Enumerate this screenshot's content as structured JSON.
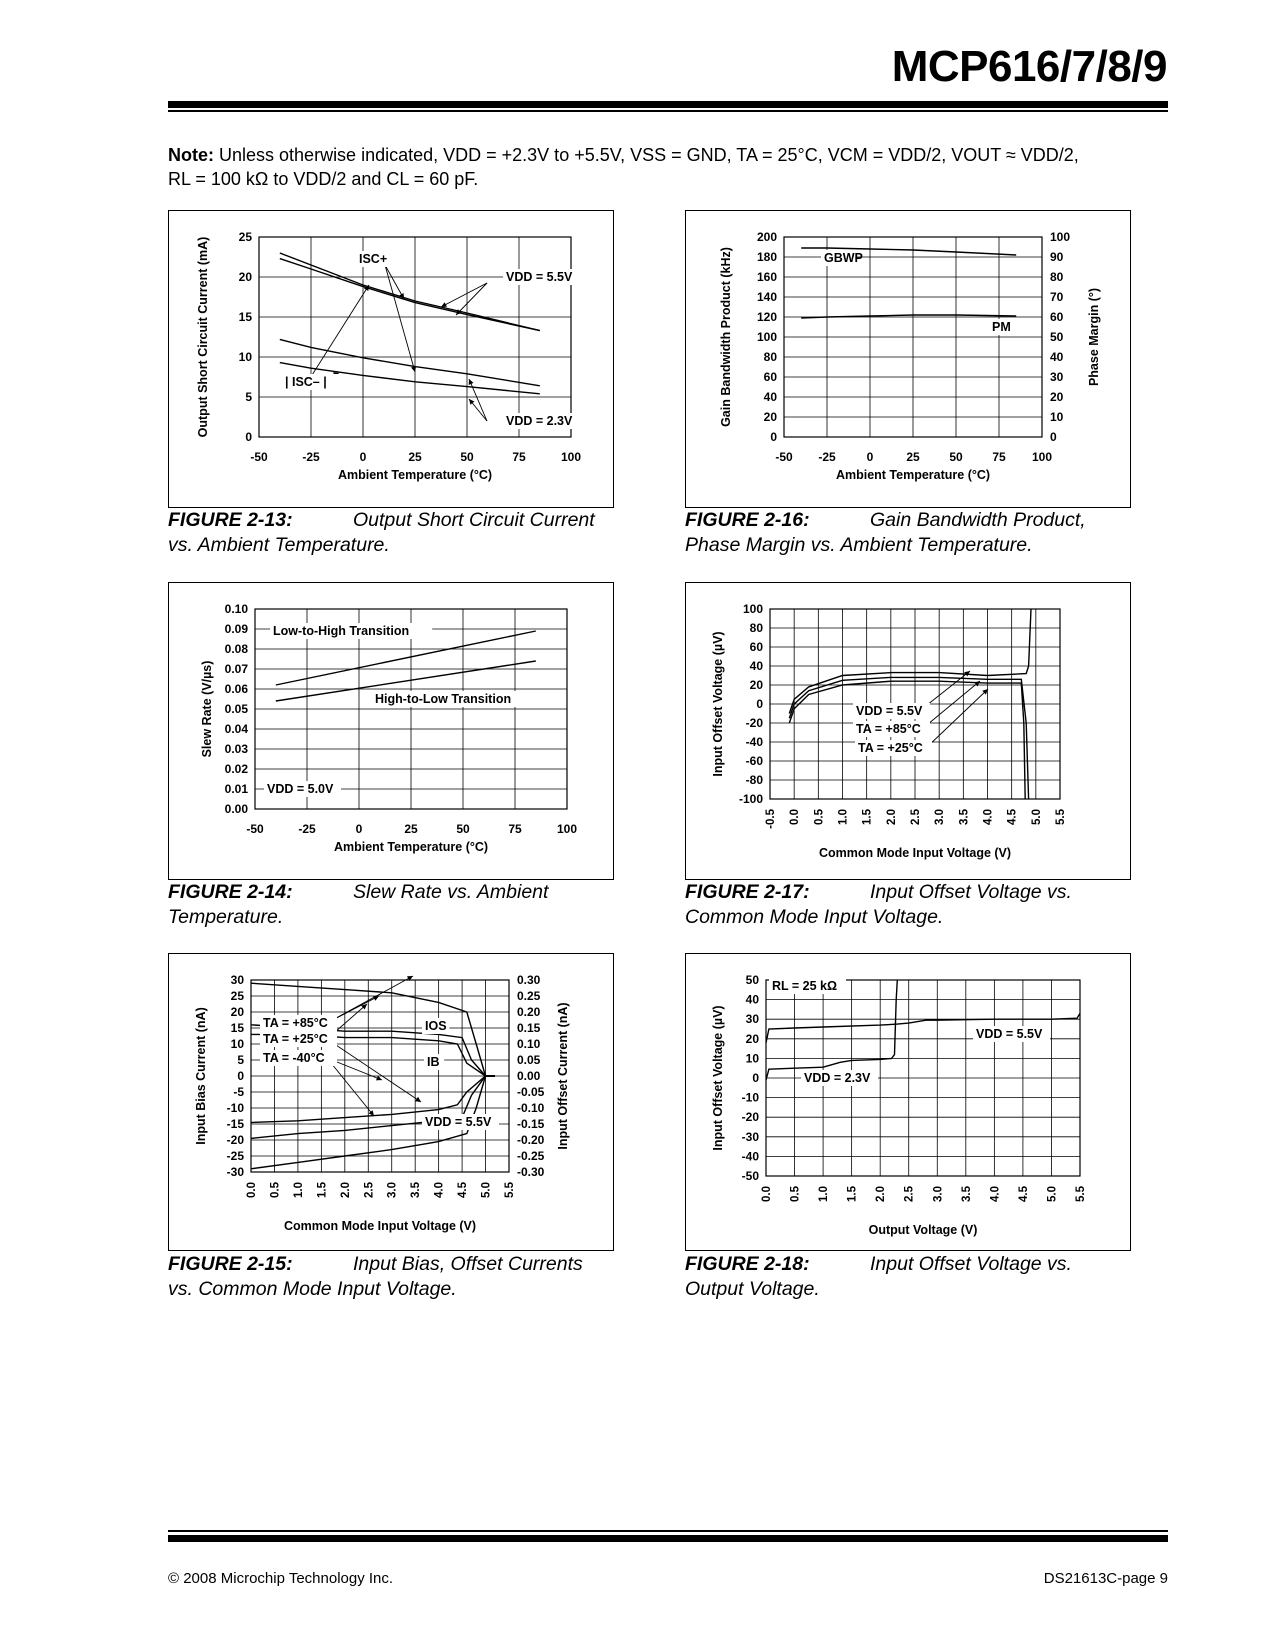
{
  "header": {
    "title": "MCP616/7/8/9"
  },
  "note": {
    "label": "Note:",
    "line1": "Unless otherwise indicated, VDD = +2.3V to +5.5V, VSS = GND, TA = 25°C, VCM = VDD/2, VOUT ≈ VDD/2,",
    "line2": "RL = 100 kΩ to VDD/2 and CL = 60 pF."
  },
  "figures": [
    {
      "number": "FIGURE 2-13:",
      "caption_a": "Output Short Circuit Current",
      "caption_b": "vs. Ambient Temperature."
    },
    {
      "number": "FIGURE 2-16:",
      "caption_a": "Gain Bandwidth Product,",
      "caption_b": "Phase Margin vs. Ambient Temperature."
    },
    {
      "number": "FIGURE 2-14:",
      "caption_a": "Slew Rate vs. Ambient",
      "caption_b": "Temperature."
    },
    {
      "number": "FIGURE 2-17:",
      "caption_a": "Input Offset Voltage vs.",
      "caption_b": "Common Mode Input Voltage."
    },
    {
      "number": "FIGURE 2-15:",
      "caption_a": "Input Bias, Offset Currents",
      "caption_b": "vs. Common Mode Input Voltage."
    },
    {
      "number": "FIGURE 2-18:",
      "caption_a": "Input Offset Voltage vs.",
      "caption_b": "Output Voltage."
    }
  ],
  "footer": {
    "left": "© 2008 Microchip Technology Inc.",
    "right": "DS21613C-page 9"
  },
  "chart_data": [
    {
      "id": "fig-2-13",
      "type": "line",
      "xlabel": "Ambient Temperature (°C)",
      "ylabel": "Output Short Circuit Current (mA)",
      "xlim": [
        -50,
        100
      ],
      "ylim": [
        0,
        25
      ],
      "grid": true,
      "x_ticks": [
        "-50",
        "-25",
        "0",
        "25",
        "50",
        "75",
        "100"
      ],
      "y_ticks": [
        "0",
        "5",
        "10",
        "15",
        "20",
        "25"
      ],
      "annotations": [
        "ISC+",
        "| ISC– |",
        "VDD = 5.5V",
        "VDD = 2.3V"
      ],
      "series": [
        {
          "x": [
            -40,
            -25,
            0,
            25,
            50,
            85
          ],
          "y": [
            23.0,
            21.5,
            19.0,
            17.0,
            15.5,
            13.3
          ]
        },
        {
          "x": [
            -40,
            -25,
            0,
            25,
            50,
            85
          ],
          "y": [
            22.3,
            21.0,
            18.8,
            16.8,
            15.3,
            13.3
          ]
        },
        {
          "x": [
            -40,
            -25,
            0,
            25,
            50,
            85
          ],
          "y": [
            12.2,
            11.2,
            9.9,
            8.8,
            7.9,
            6.4
          ]
        },
        {
          "x": [
            -40,
            -25,
            0,
            25,
            50,
            85
          ],
          "y": [
            9.3,
            8.6,
            7.7,
            6.9,
            6.3,
            5.4
          ]
        }
      ]
    },
    {
      "id": "fig-2-16",
      "type": "line",
      "xlabel": "Ambient Temperature (°C)",
      "ylabel": "Gain Bandwidth Product (kHz)",
      "y2label": "Phase Margin (°)",
      "xlim": [
        -50,
        100
      ],
      "ylim": [
        0,
        200
      ],
      "y2lim": [
        0,
        100
      ],
      "grid": true,
      "x_ticks": [
        "-50",
        "-25",
        "0",
        "25",
        "50",
        "75",
        "100"
      ],
      "y_ticks": [
        "0",
        "20",
        "40",
        "60",
        "80",
        "100",
        "120",
        "140",
        "160",
        "180",
        "200"
      ],
      "y2_ticks": [
        "0",
        "10",
        "20",
        "30",
        "40",
        "50",
        "60",
        "70",
        "80",
        "90",
        "100"
      ],
      "annotations": [
        "GBWP",
        "PM"
      ],
      "series": [
        {
          "name": "GBWP",
          "axis": "left",
          "x": [
            -40,
            -25,
            0,
            25,
            50,
            85
          ],
          "y": [
            189,
            189,
            188,
            187,
            185,
            182
          ]
        },
        {
          "name": "PM",
          "axis": "right",
          "x": [
            -40,
            -25,
            0,
            25,
            50,
            85
          ],
          "y": [
            59.5,
            60.0,
            60.5,
            61.0,
            61.0,
            60.5
          ]
        }
      ]
    },
    {
      "id": "fig-2-14",
      "type": "line",
      "xlabel": "Ambient Temperature (°C)",
      "ylabel": "Slew Rate (V/µs)",
      "xlim": [
        -50,
        100
      ],
      "ylim": [
        0,
        0.1
      ],
      "grid": true,
      "x_ticks": [
        "-50",
        "-25",
        "0",
        "25",
        "50",
        "75",
        "100"
      ],
      "y_ticks": [
        "0.00",
        "0.01",
        "0.02",
        "0.03",
        "0.04",
        "0.05",
        "0.06",
        "0.07",
        "0.08",
        "0.09",
        "0.10"
      ],
      "annotations": [
        "Low-to-High Transition",
        "High-to-Low Transition",
        "VDD = 5.0V"
      ],
      "series": [
        {
          "name": "Low-to-High Transition",
          "x": [
            -40,
            85
          ],
          "y": [
            0.062,
            0.089
          ]
        },
        {
          "name": "High-to-Low Transition",
          "x": [
            -40,
            85
          ],
          "y": [
            0.054,
            0.074
          ]
        }
      ]
    },
    {
      "id": "fig-2-17",
      "type": "line",
      "xlabel": "Common Mode Input Voltage (V)",
      "ylabel": "Input Offset Voltage (µV)",
      "xlim": [
        -0.5,
        5.5
      ],
      "ylim": [
        -100,
        100
      ],
      "grid": true,
      "x_ticks": [
        "-0.5",
        "0.0",
        "0.5",
        "1.0",
        "1.5",
        "2.0",
        "2.5",
        "3.0",
        "3.5",
        "4.0",
        "4.5",
        "5.0",
        "5.5"
      ],
      "y_ticks": [
        "-100",
        "-80",
        "-60",
        "-40",
        "-20",
        "0",
        "20",
        "40",
        "60",
        "80",
        "100"
      ],
      "annotations": [
        "VDD = 5.5V",
        "TA = +85°C",
        "TA = +25°C",
        "TA = -40°C"
      ],
      "series": [
        {
          "name": "TA = +85°C",
          "x": [
            -0.1,
            0,
            0.3,
            1.0,
            2.0,
            3.0,
            4.0,
            4.8,
            4.85,
            4.9
          ],
          "y": [
            -10,
            5,
            18,
            30,
            33,
            33,
            30,
            32,
            40,
            100
          ]
        },
        {
          "name": "TA = +25°C",
          "x": [
            -0.1,
            0,
            0.3,
            1.0,
            2.0,
            3.0,
            4.0,
            4.7,
            4.8,
            4.85
          ],
          "y": [
            -15,
            0,
            14,
            25,
            28,
            28,
            26,
            26,
            -20,
            -100
          ]
        },
        {
          "name": "TA = -40°C",
          "x": [
            -0.1,
            0,
            0.3,
            1.0,
            2.0,
            3.0,
            4.0,
            4.7,
            4.75,
            4.78
          ],
          "y": [
            -20,
            -5,
            10,
            20,
            24,
            24,
            22,
            22,
            -20,
            -100
          ]
        }
      ]
    },
    {
      "id": "fig-2-15",
      "type": "line",
      "xlabel": "Common Mode Input Voltage (V)",
      "ylabel": "Input Bias Current (nA)",
      "y2label": "Input Offset Current (nA)",
      "xlim": [
        0,
        5.5
      ],
      "ylim": [
        -30,
        30
      ],
      "y2lim": [
        -0.3,
        0.3
      ],
      "grid": true,
      "x_ticks": [
        "0.0",
        "0.5",
        "1.0",
        "1.5",
        "2.0",
        "2.5",
        "3.0",
        "3.5",
        "4.0",
        "4.5",
        "5.0",
        "5.5"
      ],
      "y_ticks": [
        "-30",
        "-25",
        "-20",
        "-15",
        "-10",
        "-5",
        "0",
        "5",
        "10",
        "15",
        "20",
        "25",
        "30"
      ],
      "y2_ticks": [
        "-0.30",
        "-0.25",
        "-0.20",
        "-0.15",
        "-0.10",
        "-0.05",
        "0.00",
        "0.05",
        "0.10",
        "0.15",
        "0.20",
        "0.25",
        "0.30"
      ],
      "annotations": [
        "TA = +85°C",
        "TA = +25°C",
        "TA = -40°C",
        "IOS",
        "IB",
        "VDD = 5.5V"
      ],
      "series": [
        {
          "name": "IOS TA = +85°C",
          "axis": "right",
          "x": [
            0,
            1,
            2,
            3,
            4,
            4.6,
            4.8,
            5.0,
            5.2
          ],
          "y": [
            0.29,
            0.28,
            0.27,
            0.26,
            0.23,
            0.2,
            0.1,
            0.0,
            0.0
          ]
        },
        {
          "name": "IOS TA = +25°C",
          "axis": "right",
          "x": [
            0,
            1,
            2,
            3,
            4,
            4.5,
            4.7,
            5.0,
            5.2
          ],
          "y": [
            0.16,
            0.15,
            0.14,
            0.14,
            0.13,
            0.12,
            0.05,
            0.0,
            0.0
          ]
        },
        {
          "name": "IOS TA = -40°C",
          "axis": "right",
          "x": [
            0,
            1,
            2,
            3,
            4,
            4.4,
            4.6,
            5.0,
            5.2
          ],
          "y": [
            0.13,
            0.13,
            0.12,
            0.12,
            0.11,
            0.1,
            0.04,
            0.0,
            0.0
          ]
        },
        {
          "name": "IB TA = -40°C",
          "axis": "left",
          "x": [
            0,
            1,
            2,
            3,
            4,
            4.4,
            4.6,
            5.0,
            5.2
          ],
          "y": [
            -14.5,
            -14,
            -13,
            -12,
            -10.5,
            -9,
            -5,
            0,
            0
          ]
        },
        {
          "name": "IB TA = +25°C",
          "axis": "left",
          "x": [
            0,
            1,
            2,
            3,
            4,
            4.5,
            4.7,
            5.0,
            5.2
          ],
          "y": [
            -19.5,
            -18,
            -17,
            -15.5,
            -14,
            -13,
            -6,
            0,
            0
          ]
        },
        {
          "name": "IB TA = +85°C",
          "axis": "left",
          "x": [
            0,
            1,
            2,
            3,
            4,
            4.6,
            4.8,
            5.0,
            5.2
          ],
          "y": [
            -29,
            -27,
            -25,
            -23,
            -20.5,
            -18,
            -10,
            0,
            0
          ]
        }
      ]
    },
    {
      "id": "fig-2-18",
      "type": "line",
      "xlabel": "Output Voltage (V)",
      "ylabel": "Input Offset Voltage (µV)",
      "xlim": [
        0,
        5.5
      ],
      "ylim": [
        -50,
        50
      ],
      "grid": true,
      "x_ticks": [
        "0.0",
        "0.5",
        "1.0",
        "1.5",
        "2.0",
        "2.5",
        "3.0",
        "3.5",
        "4.0",
        "4.5",
        "5.0",
        "5.5"
      ],
      "y_ticks": [
        "-50",
        "-40",
        "-30",
        "-20",
        "-10",
        "0",
        "10",
        "20",
        "30",
        "40",
        "50"
      ],
      "annotations": [
        "RL = 25 kΩ",
        "VDD = 5.5V",
        "VDD = 2.3V"
      ],
      "series": [
        {
          "name": "VDD = 5.5V",
          "x": [
            0,
            0.05,
            0.5,
            1,
            2,
            2.3,
            2.5,
            2.8,
            3,
            4,
            5,
            5.45,
            5.5
          ],
          "y": [
            18,
            25,
            25.5,
            26,
            27,
            27.5,
            28,
            29.5,
            29.5,
            30,
            30,
            30.5,
            33
          ]
        },
        {
          "name": "VDD = 2.3V",
          "x": [
            0,
            0.05,
            0.5,
            1,
            1.3,
            1.5,
            2,
            2.2,
            2.25,
            2.28,
            2.3
          ],
          "y": [
            -1,
            4.5,
            5,
            5.5,
            8,
            9,
            9.5,
            10,
            12,
            40,
            50
          ]
        }
      ]
    }
  ]
}
